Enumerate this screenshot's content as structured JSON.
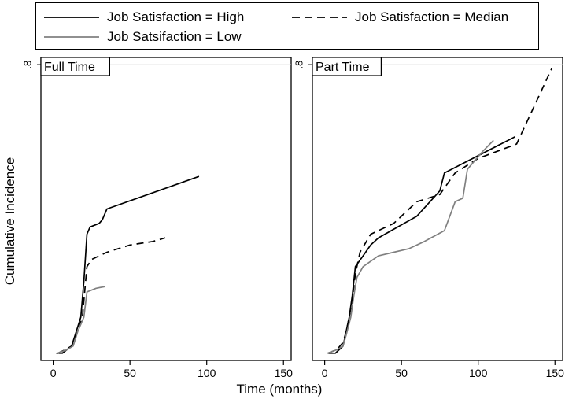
{
  "chart_data": {
    "type": "line",
    "xlabel": "Time (months)",
    "ylabel": "Cumulative Incidence",
    "xlim": [
      -8,
      155
    ],
    "ylim": [
      -0.02,
      0.82
    ],
    "xticks": [
      0,
      50,
      100,
      150
    ],
    "yticks": [
      0.8
    ],
    "xtick_labels": [
      "0",
      "50",
      "100",
      "150"
    ],
    "ytick_labels": [
      ".8"
    ],
    "grid": false,
    "legend_position": "top",
    "legend": [
      {
        "key": "high",
        "label": "Job Satisfaction = High",
        "style": "solid",
        "color": "#000000"
      },
      {
        "key": "median",
        "label": "Job Satisfaction = Median",
        "style": "dashed",
        "color": "#000000"
      },
      {
        "key": "low",
        "label": "Job Satsifaction = Low",
        "style": "solid",
        "color": "#808080"
      }
    ],
    "panels": [
      {
        "title": "Full Time",
        "series": [
          {
            "key": "high",
            "points": [
              [
                2,
                0.0
              ],
              [
                6,
                0.0
              ],
              [
                12,
                0.02
              ],
              [
                15,
                0.06
              ],
              [
                18,
                0.1
              ],
              [
                20,
                0.2
              ],
              [
                22,
                0.33
              ],
              [
                24,
                0.35
              ],
              [
                30,
                0.36
              ],
              [
                32,
                0.37
              ],
              [
                35,
                0.4
              ],
              [
                95,
                0.49
              ]
            ]
          },
          {
            "key": "median",
            "points": [
              [
                3,
                0.0
              ],
              [
                8,
                0.01
              ],
              [
                12,
                0.02
              ],
              [
                15,
                0.05
              ],
              [
                19,
                0.1
              ],
              [
                22,
                0.24
              ],
              [
                25,
                0.26
              ],
              [
                35,
                0.28
              ],
              [
                50,
                0.3
              ],
              [
                65,
                0.31
              ],
              [
                73,
                0.32
              ]
            ]
          },
          {
            "key": "low",
            "points": [
              [
                3,
                0.0
              ],
              [
                9,
                0.01
              ],
              [
                13,
                0.02
              ],
              [
                16,
                0.06
              ],
              [
                20,
                0.1
              ],
              [
                22,
                0.17
              ],
              [
                28,
                0.18
              ],
              [
                34,
                0.185
              ]
            ]
          }
        ]
      },
      {
        "title": "Part Time",
        "series": [
          {
            "key": "high",
            "points": [
              [
                2,
                0.0
              ],
              [
                7,
                0.0
              ],
              [
                12,
                0.02
              ],
              [
                14,
                0.06
              ],
              [
                16,
                0.1
              ],
              [
                18,
                0.16
              ],
              [
                20,
                0.24
              ],
              [
                25,
                0.27
              ],
              [
                30,
                0.3
              ],
              [
                35,
                0.32
              ],
              [
                60,
                0.38
              ],
              [
                75,
                0.45
              ],
              [
                78,
                0.5
              ],
              [
                124,
                0.6
              ]
            ]
          },
          {
            "key": "median",
            "points": [
              [
                2,
                0.0
              ],
              [
                8,
                0.01
              ],
              [
                12,
                0.03
              ],
              [
                14,
                0.06
              ],
              [
                16,
                0.1
              ],
              [
                18,
                0.15
              ],
              [
                20,
                0.22
              ],
              [
                23,
                0.28
              ],
              [
                30,
                0.33
              ],
              [
                45,
                0.36
              ],
              [
                55,
                0.4
              ],
              [
                60,
                0.42
              ],
              [
                75,
                0.44
              ],
              [
                85,
                0.5
              ],
              [
                100,
                0.54
              ],
              [
                125,
                0.58
              ],
              [
                148,
                0.79
              ]
            ]
          },
          {
            "key": "low",
            "points": [
              [
                2,
                0.0
              ],
              [
                8,
                0.01
              ],
              [
                12,
                0.02
              ],
              [
                14,
                0.05
              ],
              [
                17,
                0.1
              ],
              [
                19,
                0.16
              ],
              [
                21,
                0.21
              ],
              [
                25,
                0.24
              ],
              [
                35,
                0.27
              ],
              [
                45,
                0.28
              ],
              [
                55,
                0.29
              ],
              [
                65,
                0.31
              ],
              [
                78,
                0.34
              ],
              [
                85,
                0.42
              ],
              [
                90,
                0.43
              ],
              [
                93,
                0.51
              ],
              [
                103,
                0.56
              ],
              [
                110,
                0.59
              ]
            ]
          }
        ]
      }
    ]
  }
}
